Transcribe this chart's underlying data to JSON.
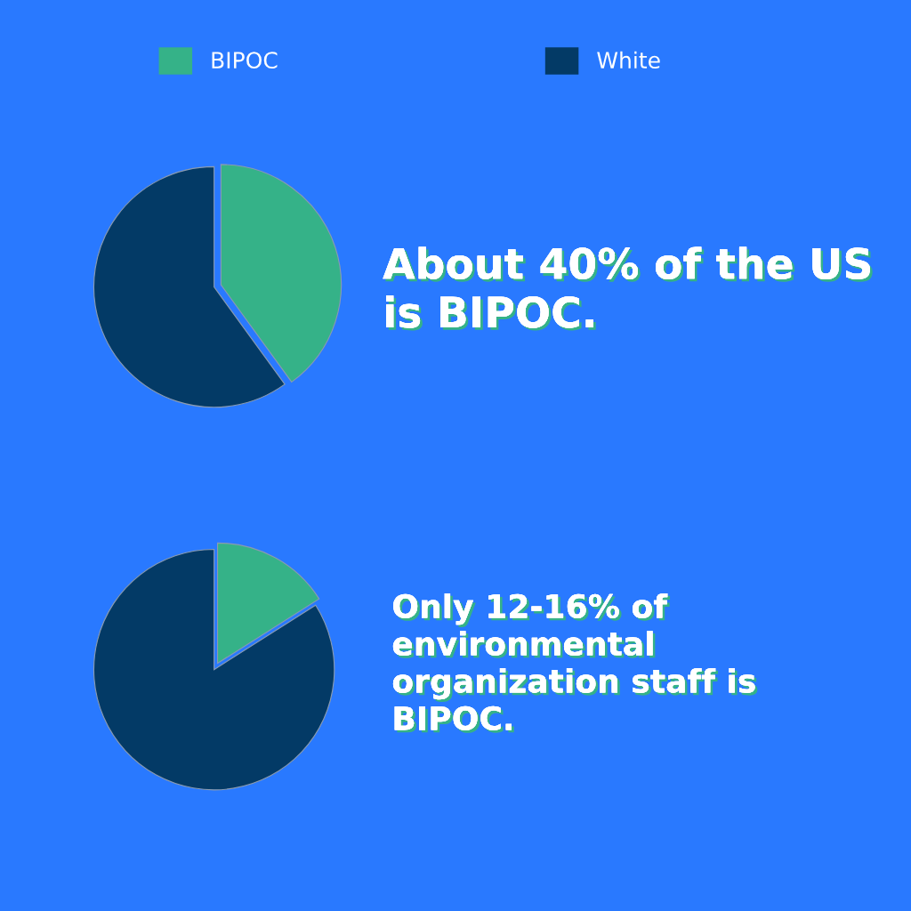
{
  "chart_data": [
    {
      "type": "pie",
      "categories": [
        "BIPOC",
        "White"
      ],
      "values": [
        40,
        60
      ],
      "colors": [
        "#35b288",
        "#033a66"
      ],
      "legend": "top",
      "annotations": [
        "About 40% of the US is BIPOC."
      ]
    },
    {
      "type": "pie",
      "categories": [
        null,
        null
      ],
      "values": [
        16,
        84
      ],
      "colors": [
        "#35b288",
        "#033a66"
      ],
      "annotations": [
        "Only 12-16% of environmental organization staff is BIPOC."
      ]
    }
  ]
}
